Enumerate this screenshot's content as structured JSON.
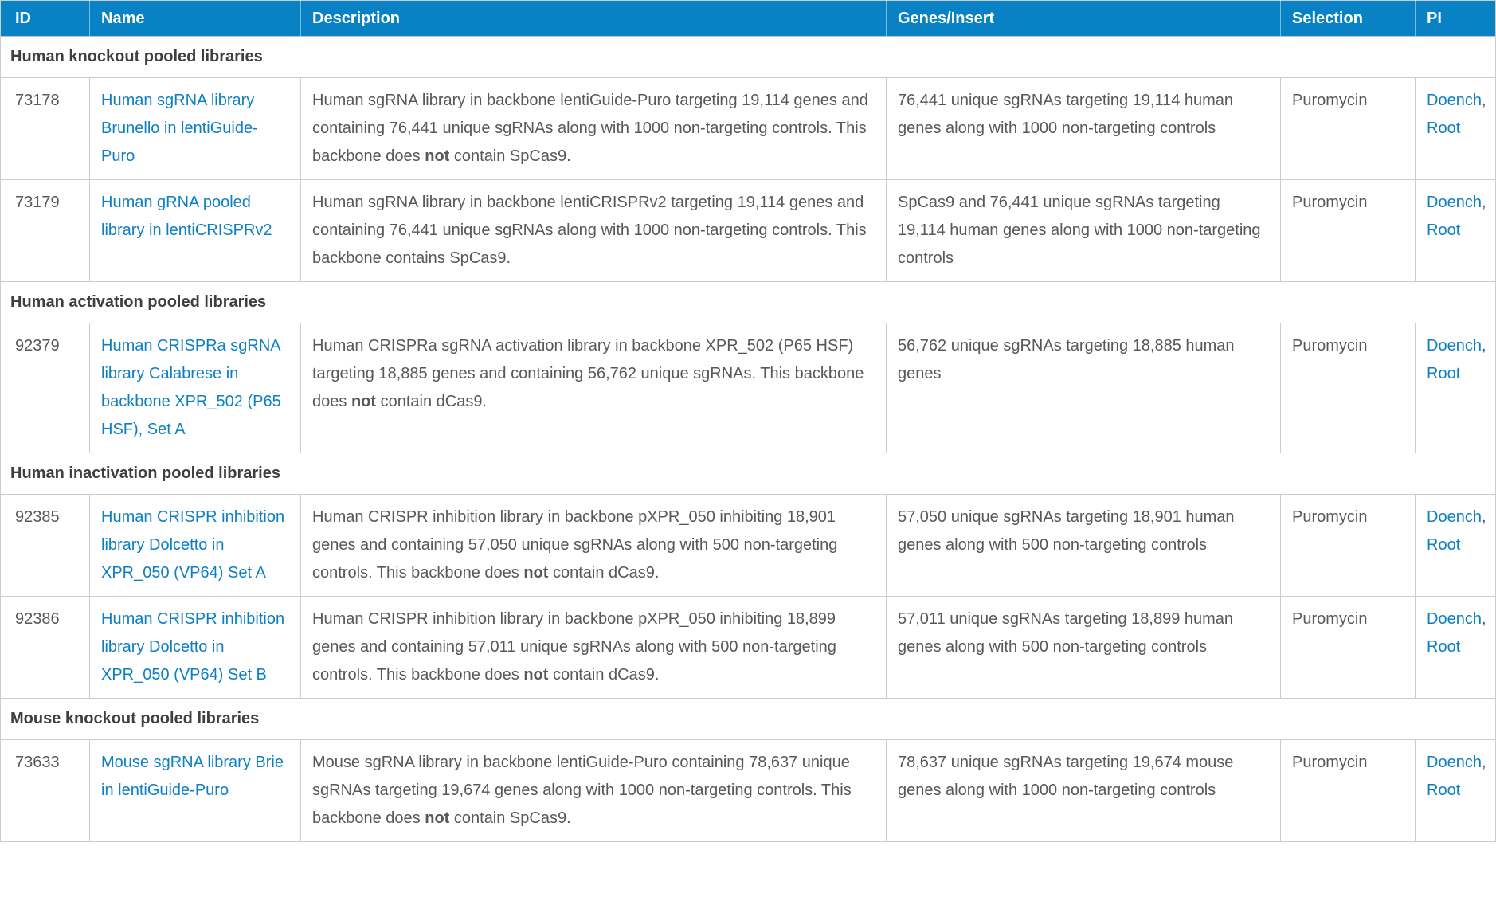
{
  "colors": {
    "header_bg": "#0882c5",
    "header_text": "#ffffff",
    "link": "#0d7fc4",
    "text": "#58585a",
    "section_heading": "#3f3f41",
    "border": "#cccccc"
  },
  "table": {
    "columns": [
      "ID",
      "Name",
      "Description",
      "Genes/Insert",
      "Selection",
      "PI"
    ],
    "pi_separator": ", ",
    "sections": [
      {
        "title": "Human knockout pooled libraries",
        "rows": [
          {
            "id": "73178",
            "name": "Human sgRNA library Brunello in lentiGuide-Puro",
            "description": [
              {
                "text": "Human sgRNA library in backbone lentiGuide-Puro targeting 19,114 genes and containing 76,441 unique sgRNAs along with 1000 non-targeting controls. This backbone does ",
                "bold": false
              },
              {
                "text": "not",
                "bold": true
              },
              {
                "text": " contain SpCas9.",
                "bold": false
              }
            ],
            "genes_insert": "76,441 unique sgRNAs targeting 19,114 human genes along with 1000 non-targeting controls",
            "selection": "Puromycin",
            "pi": [
              "Doench",
              "Root"
            ]
          },
          {
            "id": "73179",
            "name": "Human gRNA pooled library in lentiCRISPRv2",
            "description": [
              {
                "text": "Human sgRNA library in backbone lentiCRISPRv2 targeting 19,114 genes and containing 76,441 unique sgRNAs along with 1000 non-targeting controls. This backbone contains SpCas9.",
                "bold": false
              }
            ],
            "genes_insert": "SpCas9 and 76,441 unique sgRNAs targeting 19,114 human genes along with 1000 non-targeting controls",
            "selection": "Puromycin",
            "pi": [
              "Doench",
              "Root"
            ]
          }
        ]
      },
      {
        "title": "Human activation pooled libraries",
        "rows": [
          {
            "id": "92379",
            "name": "Human CRISPRa sgRNA library Calabrese in backbone XPR_502 (P65 HSF), Set A",
            "description": [
              {
                "text": "Human CRISPRa sgRNA activation library in backbone XPR_502 (P65 HSF) targeting 18,885 genes and containing 56,762 unique sgRNAs. This backbone does ",
                "bold": false
              },
              {
                "text": "not",
                "bold": true
              },
              {
                "text": " contain dCas9.",
                "bold": false
              }
            ],
            "genes_insert": "56,762 unique sgRNAs targeting 18,885 human genes",
            "selection": "Puromycin",
            "pi": [
              "Doench",
              "Root"
            ]
          }
        ]
      },
      {
        "title": "Human inactivation pooled libraries",
        "rows": [
          {
            "id": "92385",
            "name": "Human CRISPR inhibition library Dolcetto in XPR_050 (VP64) Set A",
            "description": [
              {
                "text": "Human CRISPR inhibition library in backbone pXPR_050 inhibiting 18,901 genes and containing 57,050 unique sgRNAs along with 500 non-targeting controls. This backbone does ",
                "bold": false
              },
              {
                "text": "not",
                "bold": true
              },
              {
                "text": " contain dCas9.",
                "bold": false
              }
            ],
            "genes_insert": "57,050 unique sgRNAs targeting 18,901 human genes along with 500 non-targeting controls",
            "selection": "Puromycin",
            "pi": [
              "Doench",
              "Root"
            ]
          },
          {
            "id": "92386",
            "name": "Human CRISPR inhibition library Dolcetto in XPR_050 (VP64) Set B",
            "description": [
              {
                "text": "Human CRISPR inhibition library in backbone pXPR_050 inhibiting 18,899 genes and containing 57,011 unique sgRNAs along with 500 non-targeting controls. This backbone does ",
                "bold": false
              },
              {
                "text": "not",
                "bold": true
              },
              {
                "text": " contain dCas9.",
                "bold": false
              }
            ],
            "genes_insert": "57,011 unique sgRNAs targeting 18,899 human genes along with 500 non-targeting controls",
            "selection": "Puromycin",
            "pi": [
              "Doench",
              "Root"
            ]
          }
        ]
      },
      {
        "title": "Mouse knockout pooled libraries",
        "rows": [
          {
            "id": "73633",
            "name": "Mouse sgRNA library Brie in lentiGuide-Puro",
            "description": [
              {
                "text": "Mouse sgRNA library in backbone lentiGuide-Puro containing 78,637 unique sgRNAs targeting 19,674 genes along with 1000 non-targeting controls. This backbone does ",
                "bold": false
              },
              {
                "text": "not",
                "bold": true
              },
              {
                "text": " contain SpCas9.",
                "bold": false
              }
            ],
            "genes_insert": "78,637 unique sgRNAs targeting 19,674 mouse genes along with 1000 non-targeting controls",
            "selection": "Puromycin",
            "pi": [
              "Doench",
              "Root"
            ]
          }
        ]
      }
    ]
  }
}
